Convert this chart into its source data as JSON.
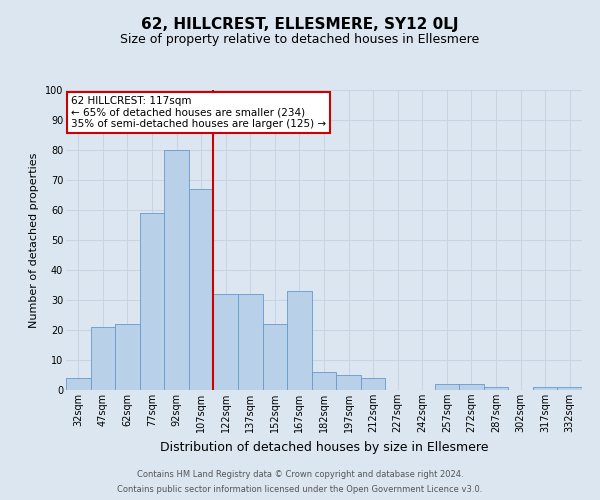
{
  "title": "62, HILLCREST, ELLESMERE, SY12 0LJ",
  "subtitle": "Size of property relative to detached houses in Ellesmere",
  "xlabel": "Distribution of detached houses by size in Ellesmere",
  "ylabel": "Number of detached properties",
  "categories": [
    "32sqm",
    "47sqm",
    "62sqm",
    "77sqm",
    "92sqm",
    "107sqm",
    "122sqm",
    "137sqm",
    "152sqm",
    "167sqm",
    "182sqm",
    "197sqm",
    "212sqm",
    "227sqm",
    "242sqm",
    "257sqm",
    "272sqm",
    "287sqm",
    "302sqm",
    "317sqm",
    "332sqm"
  ],
  "values": [
    4,
    21,
    22,
    59,
    80,
    67,
    32,
    32,
    22,
    33,
    6,
    5,
    4,
    0,
    0,
    2,
    2,
    1,
    0,
    1,
    1
  ],
  "bar_color": "#b8d0e8",
  "bar_edge_color": "#6699cc",
  "vline_color": "#cc0000",
  "grid_color": "#c8d4e4",
  "background_color": "#dce6f0",
  "ylim": [
    0,
    100
  ],
  "ann_title": "62 HILLCREST: 117sqm",
  "ann_line1": "← 65% of detached houses are smaller (234)",
  "ann_line2": "35% of semi-detached houses are larger (125) →",
  "ann_box_fc": "#ffffff",
  "ann_box_ec": "#cc0000",
  "footer1": "Contains HM Land Registry data © Crown copyright and database right 2024.",
  "footer2": "Contains public sector information licensed under the Open Government Licence v3.0.",
  "title_fontsize": 11,
  "subtitle_fontsize": 9,
  "ylabel_fontsize": 8,
  "xlabel_fontsize": 9,
  "tick_fontsize": 7,
  "ann_fontsize": 7.5,
  "footer_fontsize": 6
}
